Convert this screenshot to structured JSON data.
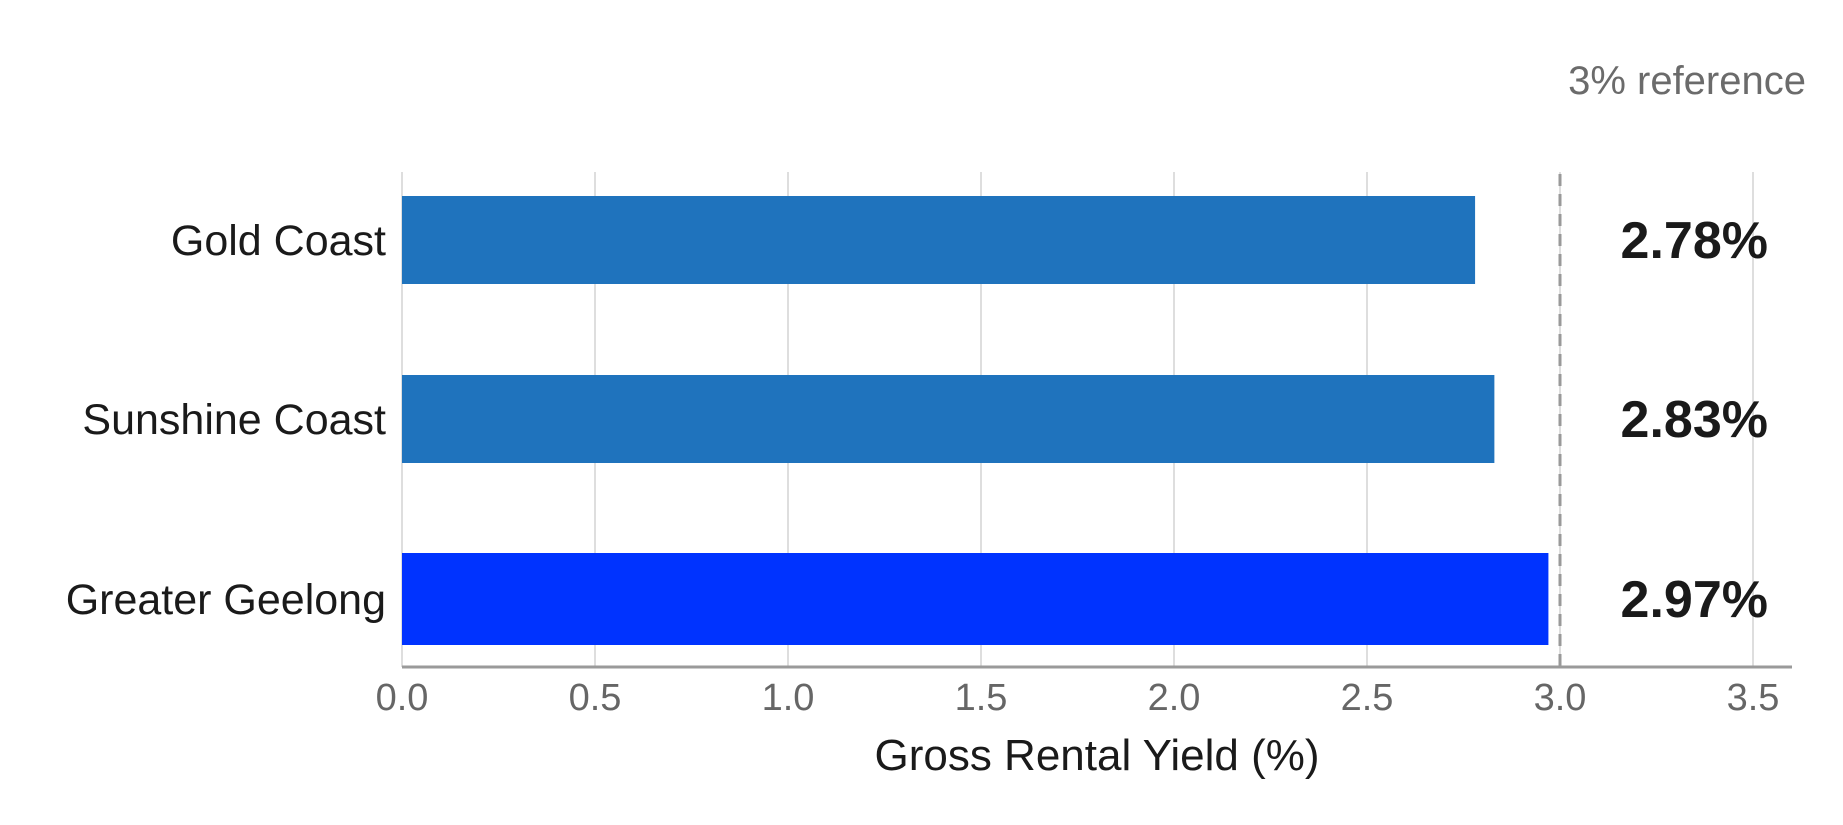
{
  "chart_data": {
    "type": "bar",
    "orientation": "horizontal",
    "categories": [
      "Gold Coast",
      "Sunshine Coast",
      "Greater Geelong"
    ],
    "values": [
      2.78,
      2.83,
      2.97
    ],
    "value_labels": [
      "2.78%",
      "2.83%",
      "2.97%"
    ],
    "bar_colors": [
      "#1f73bd",
      "#1f73bd",
      "#0033ff"
    ],
    "xlabel": "Gross Rental Yield (%)",
    "xlim": [
      0,
      3.6
    ],
    "xticks": [
      0.0,
      0.5,
      1.0,
      1.5,
      2.0,
      2.5,
      3.0,
      3.5
    ],
    "xtick_labels": [
      "0.0",
      "0.5",
      "1.0",
      "1.5",
      "2.0",
      "2.5",
      "3.0",
      "3.5"
    ],
    "grid": "vertical",
    "reference_line": {
      "value": 3.0,
      "label": "3% reference",
      "style": "dashed",
      "color": "#999999"
    }
  }
}
